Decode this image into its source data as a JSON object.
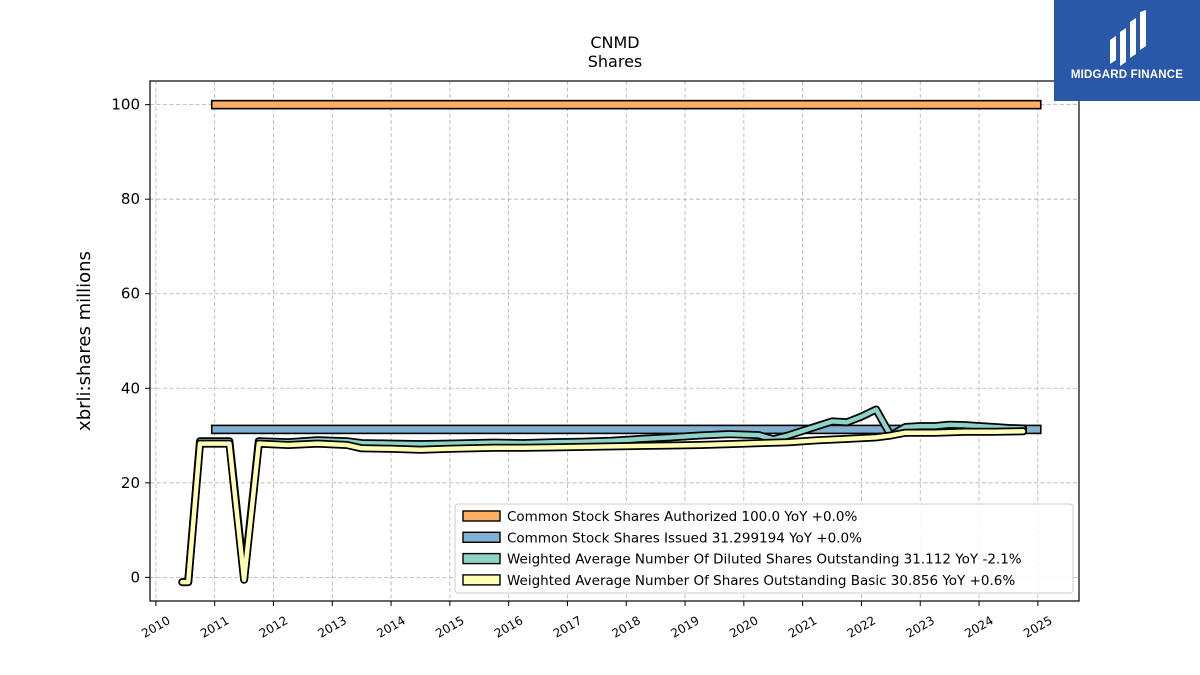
{
  "chart_data": {
    "type": "line",
    "title": "CNMD",
    "subtitle": "Shares",
    "ylabel": "xbrli:shares millions",
    "xlabel": "",
    "xlim": [
      2009.9,
      2025.7
    ],
    "ylim": [
      -5,
      105
    ],
    "yticks": [
      0,
      20,
      40,
      60,
      80,
      100
    ],
    "xticks": [
      "2010",
      "2011",
      "2012",
      "2013",
      "2014",
      "2015",
      "2016",
      "2017",
      "2018",
      "2019",
      "2020",
      "2021",
      "2022",
      "2023",
      "2024",
      "2025"
    ],
    "grid": true,
    "legend_position": "lower-right",
    "series": [
      {
        "name": "Common Stock Shares Authorized  100.0 YoY +0.0%",
        "render": "band",
        "color": "#fdae61",
        "x": [
          2010.95,
          2025.05
        ],
        "y": [
          100.0,
          100.0
        ]
      },
      {
        "name": "Common Stock Shares Issued  31.299194 YoY +0.0%",
        "render": "band",
        "color": "#80b1d3",
        "x": [
          2010.95,
          2025.05
        ],
        "y": [
          31.3,
          31.3
        ]
      },
      {
        "name": "Weighted Average Number Of Diluted Shares Outstanding  31.112 YoY -2.1%",
        "render": "line",
        "color": "#8dd3c7",
        "x": [
          2010.45,
          2010.55,
          2010.75,
          2011.25,
          2011.5,
          2011.75,
          2012.25,
          2012.75,
          2013.25,
          2013.5,
          2014.0,
          2014.5,
          2015.0,
          2015.75,
          2016.25,
          2016.75,
          2017.25,
          2017.75,
          2018.25,
          2018.75,
          2019.25,
          2019.75,
          2020.25,
          2020.5,
          2020.75,
          2021.0,
          2021.25,
          2021.5,
          2021.75,
          2022.0,
          2022.25,
          2022.5,
          2022.75,
          2023.0,
          2023.25,
          2023.5,
          2023.75,
          2024.0,
          2024.25,
          2024.5,
          2024.75
        ],
        "y": [
          -1.0,
          -1.0,
          28.8,
          28.8,
          0.0,
          28.8,
          28.6,
          29.0,
          28.8,
          28.4,
          28.3,
          28.2,
          28.3,
          28.5,
          28.4,
          28.6,
          28.7,
          28.9,
          29.3,
          29.6,
          30.0,
          30.3,
          30.1,
          29.2,
          30.0,
          31.0,
          32.0,
          33.0,
          32.8,
          34.0,
          35.5,
          30.0,
          31.8,
          32.0,
          32.0,
          32.3,
          32.2,
          32.0,
          31.8,
          31.6,
          31.5
        ]
      },
      {
        "name": "Weighted Average Number Of Shares Outstanding Basic  30.856 YoY +0.6%",
        "render": "line",
        "color": "#ffffb3",
        "x": [
          2010.45,
          2010.55,
          2010.75,
          2011.25,
          2011.5,
          2011.75,
          2012.25,
          2012.75,
          2013.25,
          2013.5,
          2014.0,
          2014.5,
          2015.0,
          2015.75,
          2016.25,
          2016.75,
          2017.25,
          2017.75,
          2018.25,
          2018.75,
          2019.25,
          2019.75,
          2020.25,
          2020.75,
          2021.25,
          2021.75,
          2022.25,
          2022.5,
          2022.75,
          2023.0,
          2023.25,
          2023.5,
          2023.75,
          2024.0,
          2024.25,
          2024.5,
          2024.75
        ],
        "y": [
          -1.0,
          -1.0,
          28.3,
          28.3,
          -0.5,
          28.3,
          28.0,
          28.3,
          28.0,
          27.3,
          27.2,
          27.0,
          27.2,
          27.4,
          27.4,
          27.5,
          27.6,
          27.7,
          27.8,
          27.9,
          28.0,
          28.2,
          28.4,
          28.6,
          29.0,
          29.3,
          29.6,
          30.0,
          30.6,
          30.6,
          30.6,
          30.7,
          30.8,
          30.8,
          30.8,
          30.85,
          30.9
        ]
      }
    ]
  },
  "logo": {
    "text": "MIDGARD FINANCE"
  }
}
